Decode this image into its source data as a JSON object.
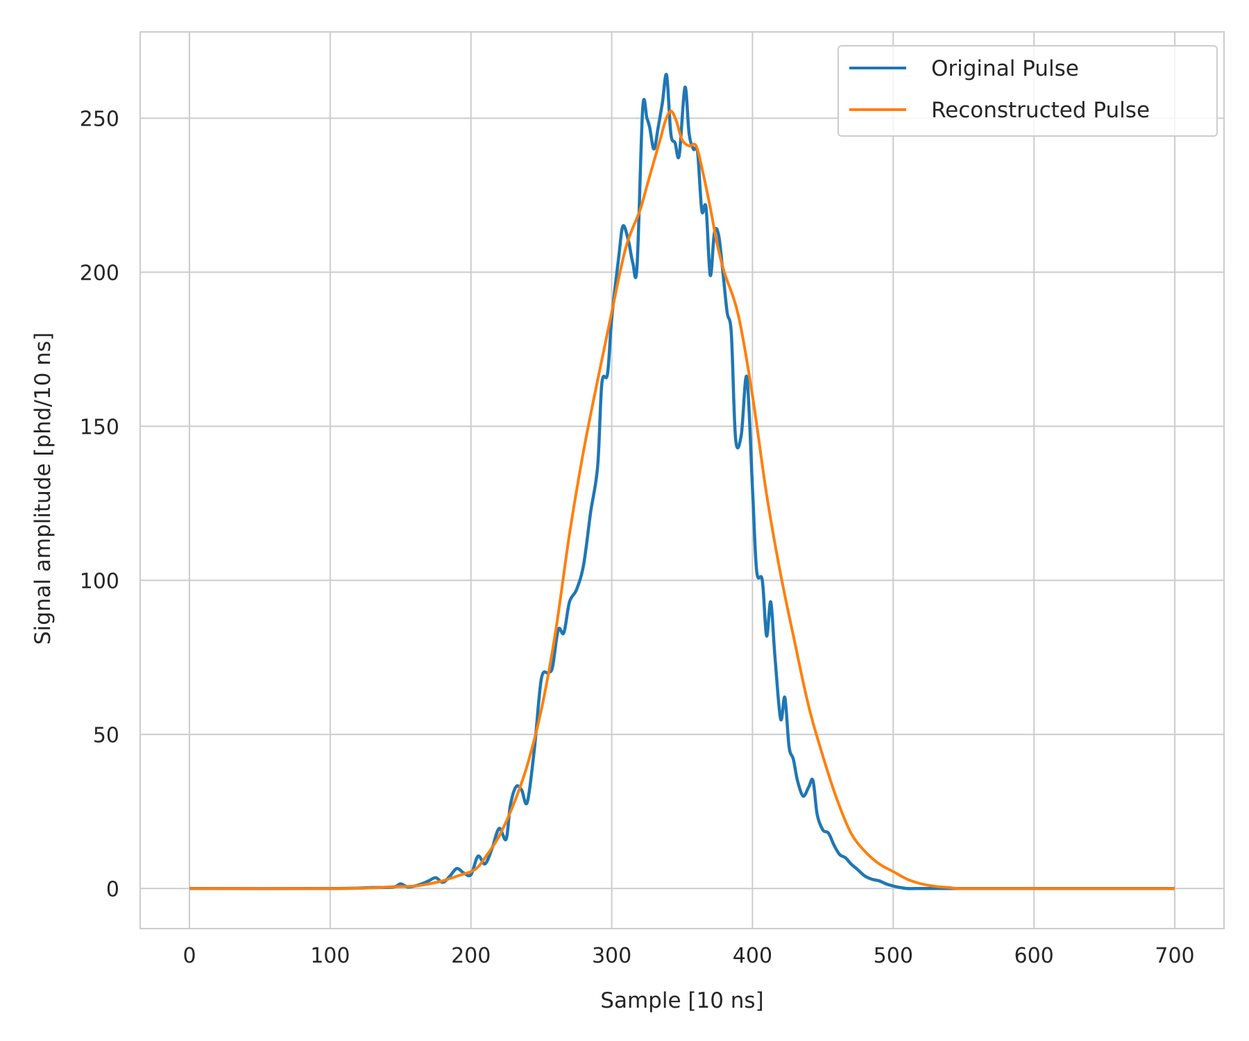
{
  "chart_data": {
    "type": "line",
    "xlabel": "Sample [10 ns]",
    "ylabel": "Signal amplitude [phd/10 ns]",
    "xlim": [
      -35,
      735
    ],
    "ylim": [
      -13,
      278
    ],
    "x_ticks": [
      0,
      100,
      200,
      300,
      400,
      500,
      600,
      700
    ],
    "y_ticks": [
      0,
      50,
      100,
      150,
      200,
      250
    ],
    "grid": true,
    "legend_position": "top-right",
    "series": [
      {
        "name": "Original Pulse",
        "color": "#1f77b4",
        "x": [
          0,
          100,
          130,
          145,
          150,
          155,
          160,
          165,
          170,
          175,
          180,
          185,
          190,
          195,
          200,
          205,
          210,
          215,
          220,
          225,
          228,
          232,
          236,
          240,
          245,
          250,
          255,
          258,
          262,
          266,
          270,
          275,
          280,
          285,
          290,
          293,
          297,
          300,
          305,
          308,
          312,
          315,
          318,
          322,
          325,
          327,
          330,
          333,
          336,
          339,
          342,
          345,
          348,
          352,
          355,
          358,
          361,
          364,
          367,
          370,
          373,
          376,
          379,
          382,
          385,
          388,
          392,
          396,
          400,
          403,
          407,
          410,
          413,
          416,
          420,
          423,
          426,
          429,
          432,
          436,
          440,
          443,
          446,
          450,
          454,
          458,
          462,
          466,
          470,
          475,
          480,
          485,
          490,
          495,
          500,
          505,
          510,
          515,
          520,
          525,
          530,
          540,
          560,
          600,
          700
        ],
        "y": [
          0,
          0,
          0.3,
          0.5,
          1.5,
          0.5,
          0.8,
          1.5,
          2.5,
          3.5,
          2,
          4,
          6.5,
          5,
          4.5,
          10.5,
          8,
          13,
          19.5,
          16,
          27,
          33,
          32,
          28,
          45,
          68,
          70,
          72,
          84,
          83,
          93,
          97,
          105,
          122,
          137,
          164,
          167,
          185,
          205,
          215,
          210,
          203,
          202,
          253,
          250,
          247,
          240,
          247,
          255,
          264,
          245,
          242,
          238,
          260,
          245,
          240,
          239,
          220,
          221,
          199,
          213,
          212,
          200,
          187,
          180,
          146,
          147,
          166,
          130,
          103,
          100,
          82,
          93,
          75,
          55,
          62,
          46,
          42,
          35,
          30,
          33,
          35,
          24,
          19,
          18,
          14,
          11,
          10,
          8,
          6,
          4,
          3,
          2.5,
          1.5,
          0.8,
          0.3,
          0,
          0,
          0,
          0,
          0,
          0,
          0,
          0,
          0
        ]
      },
      {
        "name": "Reconstructed Pulse",
        "color": "#ff7f0e",
        "x": [
          0,
          100,
          130,
          145,
          160,
          170,
          180,
          190,
          200,
          205,
          210,
          220,
          230,
          240,
          250,
          260,
          270,
          280,
          290,
          300,
          310,
          320,
          325,
          330,
          335,
          338,
          341,
          343,
          346,
          350,
          355,
          360,
          365,
          370,
          375,
          380,
          390,
          400,
          410,
          420,
          430,
          440,
          450,
          460,
          470,
          480,
          490,
          500,
          510,
          520,
          530,
          540,
          550,
          600,
          700
        ],
        "y": [
          0,
          0,
          0.2,
          0.6,
          0.8,
          1.5,
          2.5,
          4,
          5.5,
          7,
          10,
          17,
          27,
          40,
          58,
          83,
          115,
          142,
          165,
          187,
          208,
          220,
          228,
          236,
          244,
          249,
          252,
          252,
          249,
          243,
          241,
          241,
          232,
          221,
          209,
          200,
          186,
          160,
          128,
          102,
          80,
          59,
          43,
          29,
          18,
          12,
          8,
          5.5,
          3,
          1.5,
          0.7,
          0.3,
          0,
          0,
          0
        ]
      }
    ]
  }
}
